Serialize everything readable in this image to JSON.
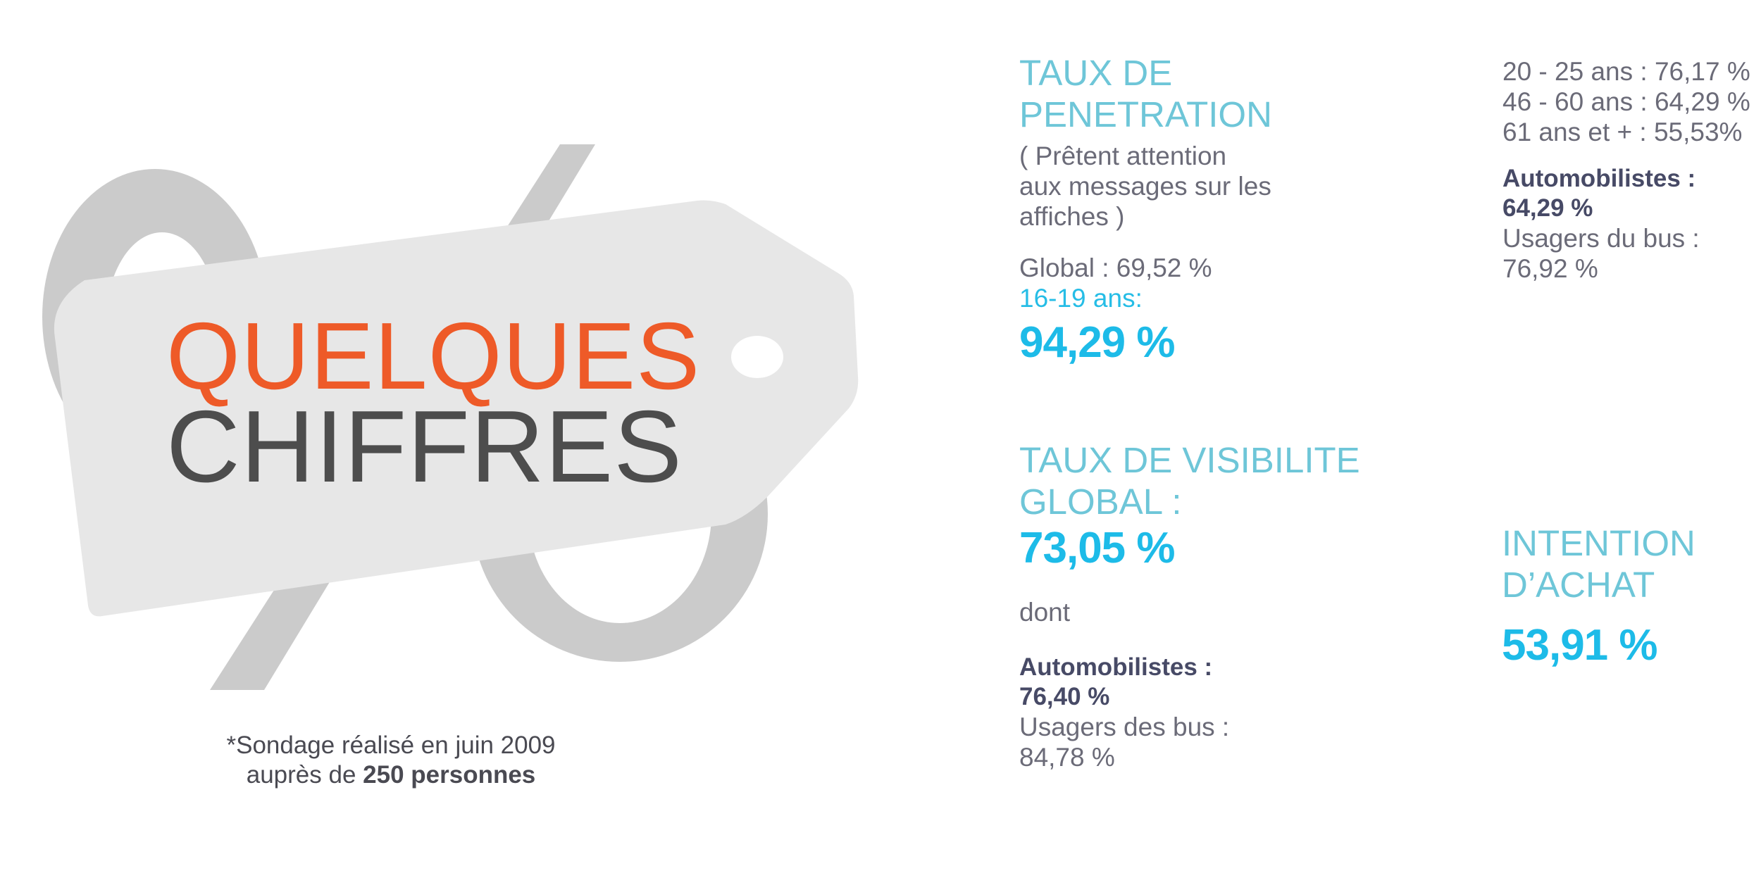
{
  "tag": {
    "line1": "QUELQUES",
    "line2": "CHIFFRES",
    "colors": {
      "line1": "#ee5a28",
      "line2": "#4d4d4d",
      "tag": "#e6e6e6",
      "percent_glyph": "#cbcbcb"
    }
  },
  "footnote": {
    "text": "*Sondage réalisé en juin 2009",
    "prefix": "auprès de ",
    "bold": "250 personnes"
  },
  "penetration": {
    "title_line1": "TAUX DE",
    "title_line2": "PENETRATION",
    "note_line1": "( Prêtent attention",
    "note_line2": "aux messages sur les",
    "note_line3": "affiches )",
    "global": "Global : 69,52 %",
    "age_label": "16-19 ans:",
    "age_value": "94,29 %"
  },
  "age_breakdown": {
    "row1": "20 - 25 ans : 76,17 %",
    "row2": "46 - 60 ans : 64,29 %",
    "row3": "61 ans et + : 55,53%",
    "drivers_label": "Automobilistes :",
    "drivers_value": "64,29 %",
    "bus_label": "Usagers du bus :",
    "bus_value": "76,92 %"
  },
  "visibility": {
    "title_line1": "TAUX DE VISIBILITE",
    "title_line2": "GLOBAL :",
    "value": "73,05 %",
    "dont": "dont",
    "drivers_label": "Automobilistes :",
    "drivers_value": "76,40 %",
    "bus_label": "Usagers des bus :",
    "bus_value": "84,78 %"
  },
  "purchase": {
    "title_line1": "INTENTION",
    "title_line2": "D’ACHAT",
    "value": "53,91 %"
  }
}
